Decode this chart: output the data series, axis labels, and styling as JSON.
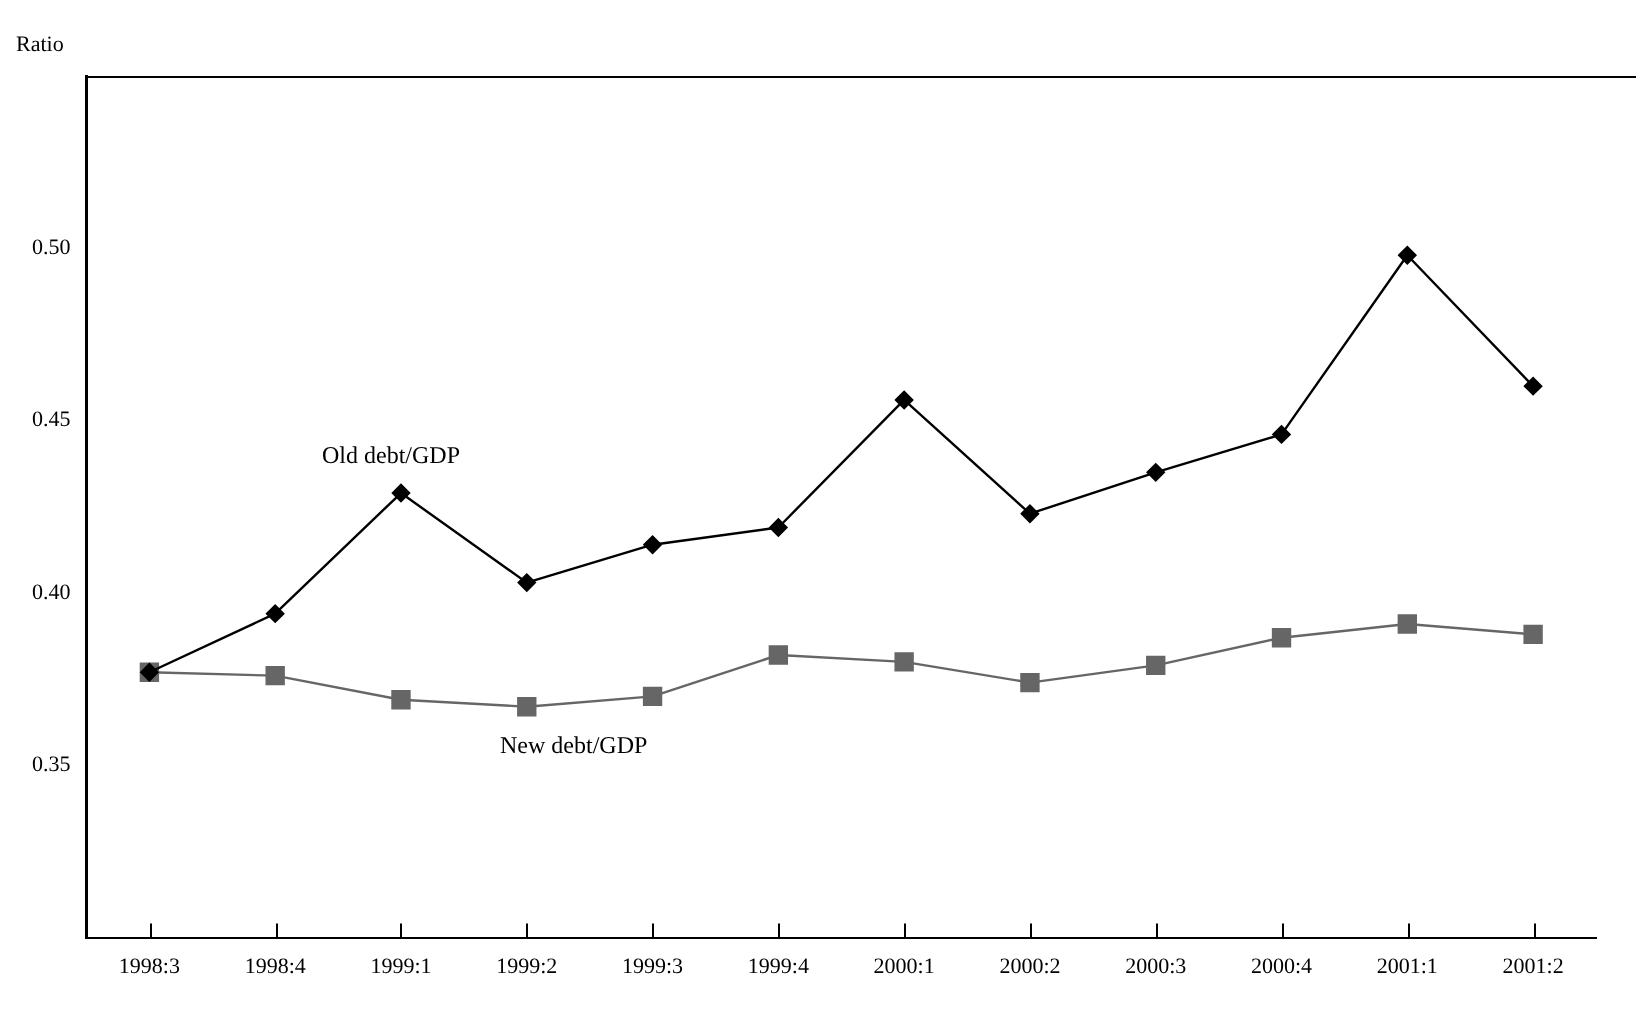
{
  "chart_data": {
    "type": "line",
    "ylabel": "Ratio",
    "categories": [
      "1998:3",
      "1998:4",
      "1999:1",
      "1999:2",
      "1999:3",
      "1999:4",
      "2000:1",
      "2000:2",
      "2000:3",
      "2000:4",
      "2001:1",
      "2001:2"
    ],
    "series": [
      {
        "name": "Old debt/GDP",
        "color": "#000000",
        "marker": "diamond",
        "values": [
          0.377,
          0.394,
          0.429,
          0.403,
          0.414,
          0.419,
          0.456,
          0.423,
          0.435,
          0.446,
          0.498,
          0.46
        ]
      },
      {
        "name": "New debt/GDP",
        "color": "#666666",
        "marker": "square",
        "values": [
          0.377,
          0.376,
          0.369,
          0.367,
          0.37,
          0.382,
          0.38,
          0.374,
          0.379,
          0.387,
          0.391,
          0.388
        ]
      }
    ],
    "ylim": [
      0.3,
      0.55
    ],
    "yticks": [
      {
        "value": 0.35,
        "label": "0.35"
      },
      {
        "value": 0.4,
        "label": "0.40"
      },
      {
        "value": 0.45,
        "label": "0.45"
      },
      {
        "value": 0.5,
        "label": "0.50"
      }
    ],
    "grid": false,
    "legend": false,
    "line_style": "solid"
  }
}
